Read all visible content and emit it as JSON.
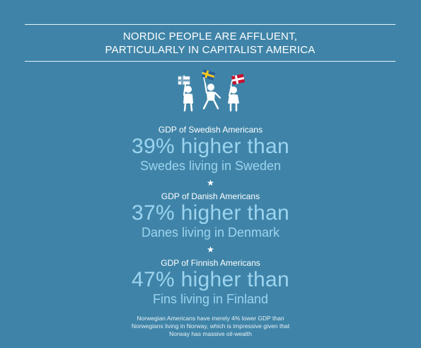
{
  "headline": {
    "line1": "NORDIC PEOPLE ARE AFFLUENT,",
    "line2": "PARTICULARLY IN CAPITALIST AMERICA"
  },
  "illustration": {
    "icon": "three-people-waving-nordic-flags",
    "flags": [
      "finland-flag",
      "sweden-flag",
      "denmark-flag"
    ]
  },
  "stats": [
    {
      "label": "GDP of Swedish Americans",
      "value": "39% higher than",
      "comparison": "Swedes living in Sweden"
    },
    {
      "label": "GDP of Danish Americans",
      "value": "37% higher than",
      "comparison": "Danes living in Denmark"
    },
    {
      "label": "GDP of Finnish Americans",
      "value": "47% higher than",
      "comparison": "Fins living in Finland"
    }
  ],
  "separator_glyph": "★",
  "footnote": {
    "line1": "Norwegian Americans have merely 4% lower GDP than",
    "line2": "Norwegians living in Norway, which is impressive given that",
    "line3": "Norway has massive oil-wealth"
  },
  "colors": {
    "background": "#3f84a8",
    "accent_text": "#9cd4ef",
    "text": "#ffffff"
  }
}
